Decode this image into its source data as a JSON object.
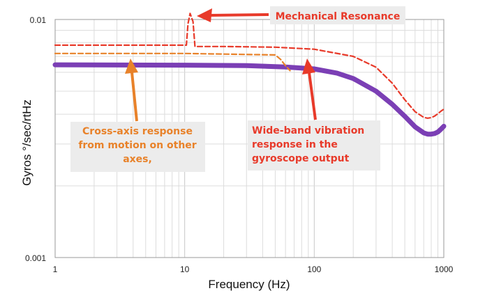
{
  "chart_data": {
    "type": "line",
    "x_scale": "log",
    "y_scale": "log",
    "xlim": [
      1,
      1000
    ],
    "ylim": [
      0.001,
      0.01
    ],
    "grid": true,
    "xlabel": "Frequency (Hz)",
    "ylabel": "Gyros °/sec/rtHz",
    "x_ticks": [
      {
        "value": 1,
        "label": "1"
      },
      {
        "value": 10,
        "label": "10"
      },
      {
        "value": 100,
        "label": "100"
      },
      {
        "value": 1000,
        "label": "1000"
      }
    ],
    "y_ticks": [
      {
        "value": 0.01,
        "label": "0.01"
      },
      {
        "value": 0.001,
        "label": "0.001"
      }
    ],
    "series": [
      {
        "color": "#7B3FB5",
        "style": "solid",
        "x": [
          1,
          10,
          30,
          60,
          100,
          150,
          200,
          300,
          400,
          500,
          600,
          700,
          750,
          800,
          850,
          900,
          950,
          1000
        ],
        "y": [
          0.00645,
          0.00643,
          0.0064,
          0.00632,
          0.0062,
          0.00595,
          0.00565,
          0.005,
          0.0044,
          0.00392,
          0.00354,
          0.00334,
          0.0033,
          0.0033,
          0.00332,
          0.00337,
          0.00346,
          0.00356
        ]
      },
      {
        "color": "#E83A2A",
        "style": "dashed",
        "x": [
          1,
          10.3,
          10.6,
          11.0,
          11.6,
          12.0,
          20,
          50,
          100,
          200,
          300,
          400,
          500,
          600,
          700,
          750,
          800,
          850,
          900,
          950,
          1000
        ],
        "y": [
          0.0078,
          0.0078,
          0.0096,
          0.0106,
          0.0098,
          0.0077,
          0.0077,
          0.00765,
          0.0075,
          0.007,
          0.0063,
          0.0054,
          0.0046,
          0.0041,
          0.00388,
          0.00385,
          0.00387,
          0.00393,
          0.00402,
          0.00412,
          0.0042
        ]
      },
      {
        "color": "#E8822A",
        "style": "dashed",
        "x": [
          1,
          10,
          50,
          55,
          60,
          65
        ],
        "y": [
          0.0072,
          0.0072,
          0.0071,
          0.0068,
          0.0064,
          0.0061
        ]
      }
    ],
    "annotations": [
      {
        "text": "Mechanical Resonance",
        "color": "#E83A2A"
      },
      {
        "text": "Cross-axis response from motion on other axes,",
        "color": "#E8822A"
      },
      {
        "text": "Wide-band vibration response in the gyroscope output",
        "color": "#E83A2A"
      }
    ]
  }
}
